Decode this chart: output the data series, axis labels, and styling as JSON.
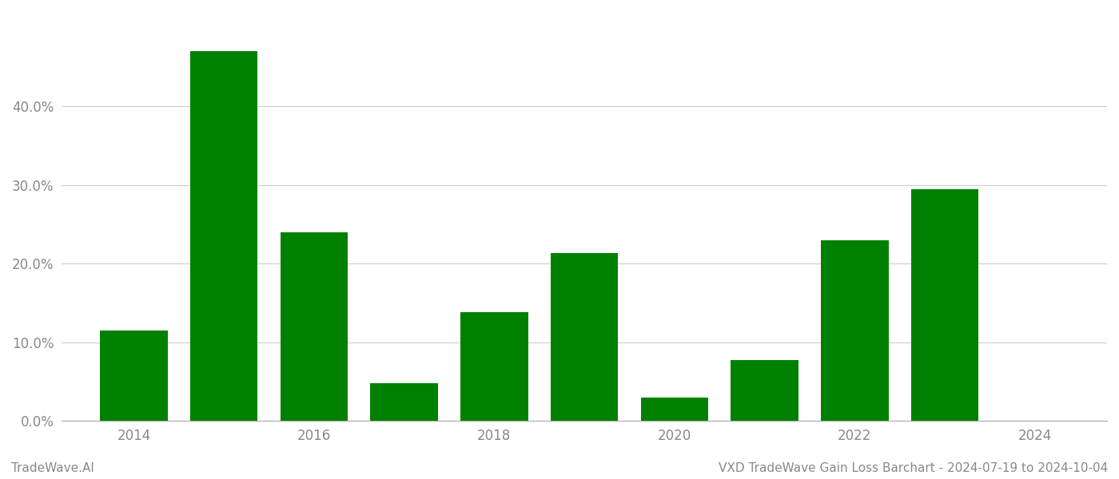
{
  "years": [
    2014,
    2015,
    2016,
    2017,
    2018,
    2019,
    2020,
    2021,
    2022,
    2023
  ],
  "values": [
    0.115,
    0.47,
    0.24,
    0.048,
    0.138,
    0.213,
    0.03,
    0.077,
    0.23,
    0.295
  ],
  "bar_color": "#008000",
  "background_color": "#ffffff",
  "grid_color": "#cccccc",
  "axis_color": "#aaaaaa",
  "tick_label_color": "#888888",
  "yticks": [
    0.0,
    0.1,
    0.2,
    0.3,
    0.4
  ],
  "xtick_labels": [
    "2014",
    "2016",
    "2018",
    "2020",
    "2022",
    "2024"
  ],
  "xtick_positions": [
    2014,
    2016,
    2018,
    2020,
    2022,
    2024
  ],
  "footer_left": "TradeWave.AI",
  "footer_right": "VXD TradeWave Gain Loss Barchart - 2024-07-19 to 2024-10-04",
  "footer_color": "#888888",
  "footer_fontsize": 11,
  "ylim": [
    0,
    0.52
  ],
  "xlim_left": 2013.2,
  "xlim_right": 2024.8,
  "bar_width": 0.75,
  "tick_fontsize": 12
}
